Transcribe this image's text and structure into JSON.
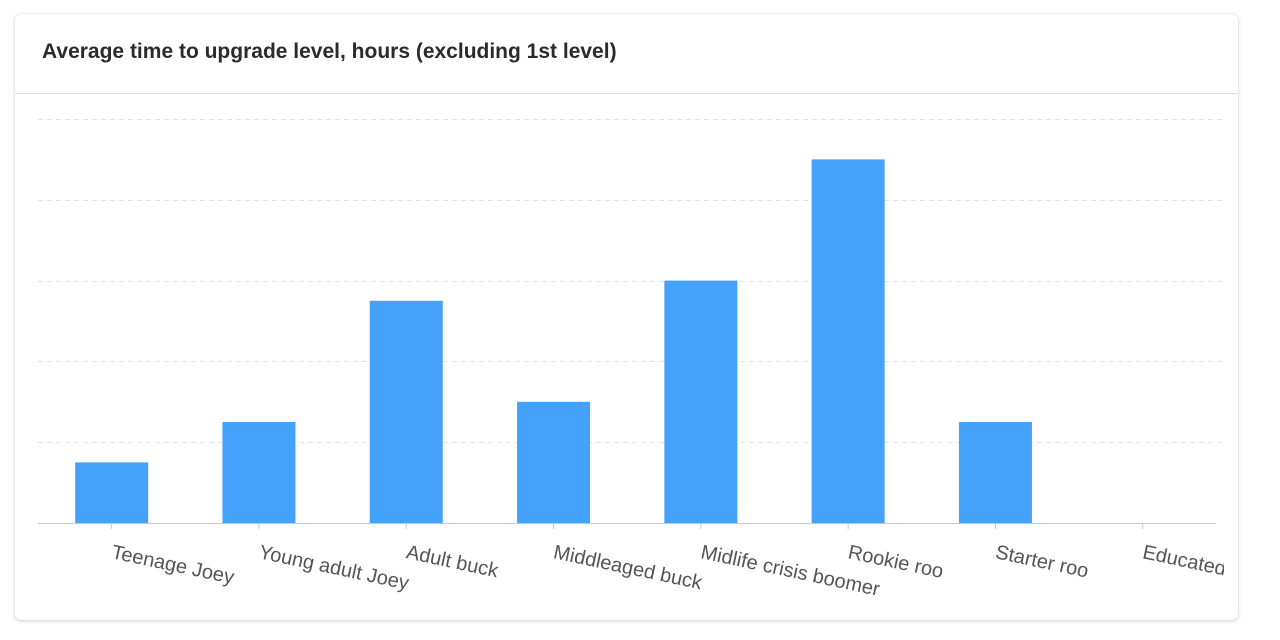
{
  "card": {
    "title": "Average time to upgrade level, hours (excluding 1st level)"
  },
  "chart_data": {
    "type": "bar",
    "title": "Average time to upgrade level, hours (excluding 1st level)",
    "xlabel": "",
    "ylabel": "",
    "categories": [
      "Teenage Joey",
      "Young adult Joey",
      "Adult buck",
      "Middleaged buck",
      "Midlife crisis boomer",
      "Rookie roo",
      "Starter roo",
      "Educated roo"
    ],
    "values": [
      1.5,
      2.5,
      5.5,
      3,
      6,
      9,
      2.5,
      0
    ],
    "ylim": [
      0,
      10
    ],
    "y_gridlines": [
      0,
      2,
      4,
      6,
      8,
      10
    ],
    "grid": "horizontal-dashed",
    "legend": "none",
    "colors": {
      "bar": "#44a2fb",
      "grid": "#e3e3e3",
      "axis": "#c8c8c8",
      "tick_label": "#555555"
    }
  }
}
